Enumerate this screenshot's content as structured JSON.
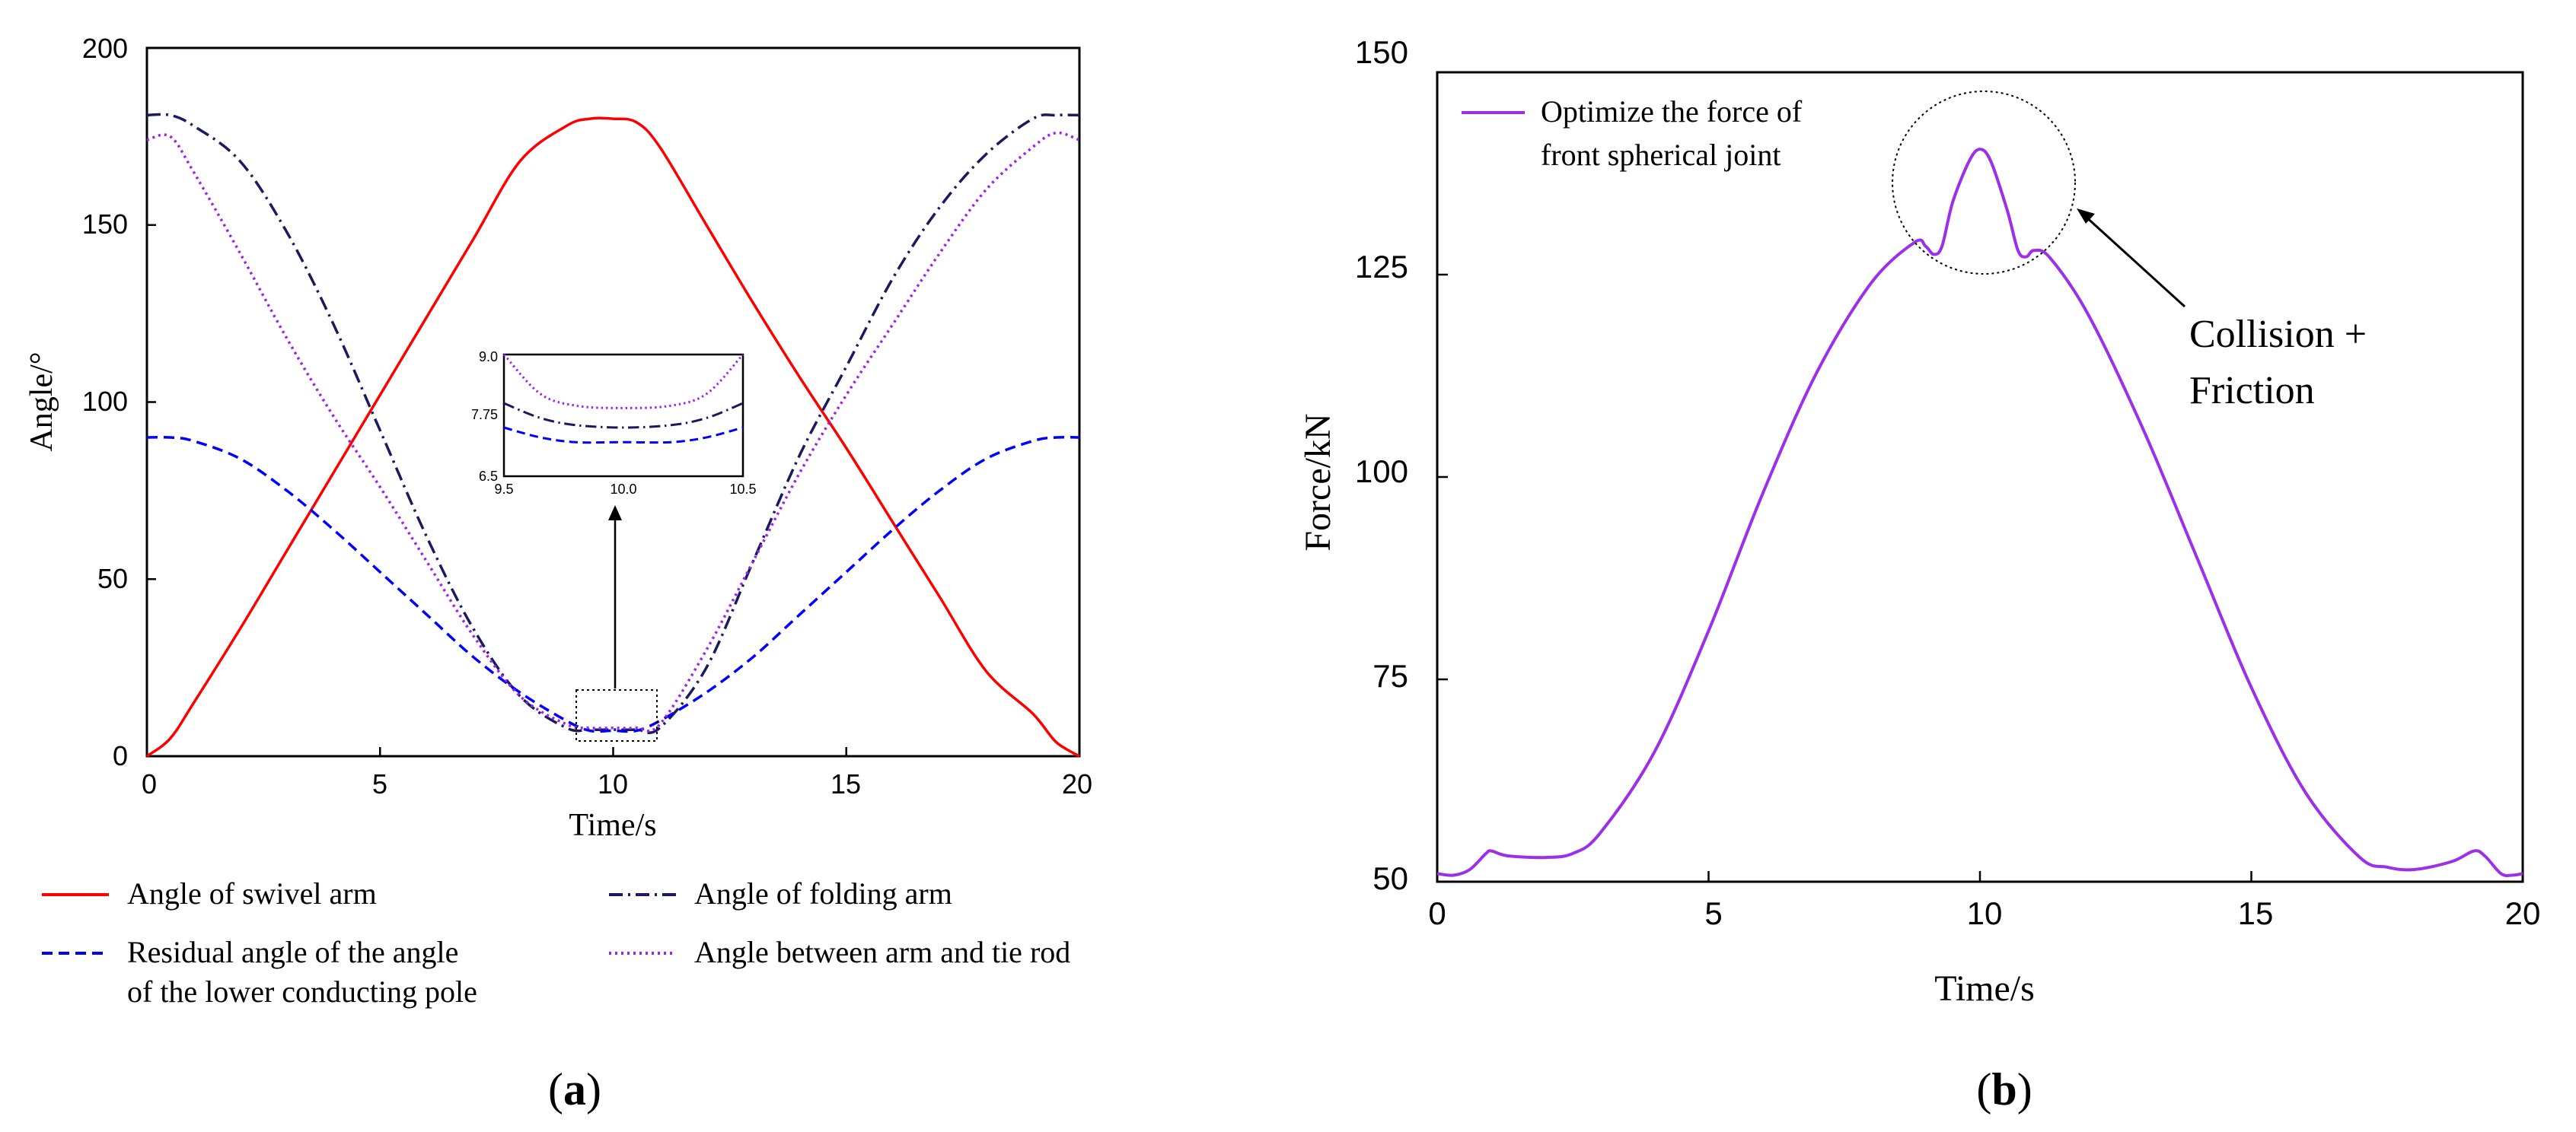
{
  "chart_data": [
    {
      "panel": "a",
      "panel_label": "a",
      "type": "line",
      "xlabel": "Time/s",
      "ylabel": "Angle/°",
      "xlim": [
        0,
        20
      ],
      "ylim": [
        0,
        200
      ],
      "xticks": [
        "0",
        "5",
        "10",
        "15",
        "20"
      ],
      "yticks": [
        "0",
        "50",
        "100",
        "150",
        "200"
      ],
      "series": [
        {
          "name": "Angle of swivel arm",
          "color": "#ff0000",
          "dash": "solid",
          "x": [
            0,
            0.5,
            1.0,
            2,
            3,
            4,
            5,
            6,
            7,
            8,
            9,
            9.5,
            10,
            10.5,
            11,
            12,
            13,
            14,
            15,
            16,
            17,
            18,
            19,
            19.5,
            20
          ],
          "y": [
            0,
            5,
            15,
            36,
            58,
            80,
            102,
            124,
            146,
            168,
            178,
            180,
            180,
            179,
            172,
            150,
            128,
            107,
            87,
            66,
            45,
            24,
            12,
            4,
            0
          ]
        },
        {
          "name": "Angle of folding arm",
          "color": "#1a1a5e",
          "dash": "dashdot",
          "x": [
            0,
            0.5,
            1,
            2,
            3,
            4,
            5,
            6,
            7,
            8,
            9,
            9.5,
            10,
            10.5,
            11,
            12,
            13,
            14,
            15,
            16,
            17,
            18,
            19,
            19.5,
            20
          ],
          "y": [
            181,
            181,
            178,
            168,
            148,
            122,
            92,
            62,
            36,
            17,
            8,
            7.5,
            7.5,
            7.5,
            8,
            25,
            55,
            85,
            110,
            135,
            155,
            170,
            180,
            181,
            181
          ]
        },
        {
          "name": "Residual angle of the angle\nof the lower conducting pole",
          "color": "#0000ff",
          "dash": "dashed",
          "x": [
            0,
            0.5,
            1,
            2,
            3,
            4,
            5,
            6,
            7,
            8,
            9,
            9.5,
            10,
            10.5,
            11,
            12,
            13,
            14,
            15,
            16,
            17,
            18,
            19,
            19.5,
            20
          ],
          "y": [
            90,
            90,
            89,
            84,
            75,
            64,
            52,
            40,
            28,
            18,
            10,
            7.2,
            7.2,
            7.2,
            10,
            18,
            28,
            40,
            52,
            64,
            75,
            84,
            89,
            90,
            90
          ]
        },
        {
          "name": "Angle between arm and tie rod",
          "color": "#a020f0",
          "dash": "dotted",
          "x": [
            0,
            0.5,
            1,
            2,
            3,
            4,
            5,
            6,
            7,
            8,
            9,
            9.5,
            10,
            10.5,
            11,
            12,
            13,
            14,
            15,
            16,
            17,
            18,
            19,
            19.5,
            20
          ],
          "y": [
            174,
            175,
            165,
            142,
            118,
            96,
            76,
            55,
            34,
            17,
            9,
            8,
            8,
            8,
            9,
            30,
            55,
            80,
            102,
            122,
            142,
            160,
            172,
            176,
            174
          ]
        }
      ],
      "inset": {
        "xlim": [
          9.5,
          10.5
        ],
        "ylim": [
          6.5,
          9.0
        ],
        "xticks": [
          "9.5",
          "10.0",
          "10.5"
        ],
        "yticks": [
          "6.5",
          "7.75",
          "9.0"
        ],
        "series": [
          {
            "color": "#a020f0",
            "dash": "dotted",
            "x": [
              9.5,
              9.65,
              9.8,
              10.0,
              10.2,
              10.35,
              10.5
            ],
            "y": [
              9.0,
              8.2,
              7.95,
              7.9,
              7.95,
              8.2,
              9.0
            ]
          },
          {
            "color": "#1a1a5e",
            "dash": "dashdot",
            "x": [
              9.5,
              9.65,
              9.8,
              10.0,
              10.2,
              10.35,
              10.5
            ],
            "y": [
              8.0,
              7.7,
              7.55,
              7.5,
              7.55,
              7.7,
              8.0
            ]
          },
          {
            "color": "#0000ff",
            "dash": "dashed",
            "x": [
              9.5,
              9.65,
              9.8,
              10.0,
              10.2,
              10.35,
              10.5
            ],
            "y": [
              7.5,
              7.3,
              7.2,
              7.2,
              7.2,
              7.3,
              7.5
            ]
          }
        ]
      }
    },
    {
      "panel": "b",
      "panel_label": "b",
      "type": "line",
      "xlabel": "Time/s",
      "ylabel": "Force/kN",
      "xlim": [
        0,
        20
      ],
      "ylim": [
        50,
        150
      ],
      "xticks": [
        "0",
        "5",
        "10",
        "15",
        "20"
      ],
      "yticks": [
        "50",
        "75",
        "100",
        "125",
        "150"
      ],
      "series": [
        {
          "name": "Optimize the force of\nfront spherical joint",
          "color": "#9b30e8",
          "dash": "solid",
          "x": [
            0,
            0.3,
            0.6,
            0.9,
            1.0,
            1.3,
            2.0,
            2.5,
            3.0,
            4.0,
            5.0,
            6.0,
            7.0,
            8.0,
            8.8,
            9.0,
            9.15,
            9.3,
            9.5,
            9.8,
            10.0,
            10.2,
            10.5,
            10.7,
            10.85,
            11.0,
            11.3,
            12.0,
            13.0,
            14.0,
            15.0,
            16.0,
            17.0,
            17.5,
            18.0,
            18.7,
            19.1,
            19.3,
            19.6,
            19.8,
            20.0
          ],
          "y": [
            51,
            50.8,
            51.5,
            53.5,
            53.8,
            53.2,
            53.0,
            53.5,
            56,
            66,
            81,
            98,
            113,
            124,
            129,
            128.5,
            127.5,
            128.5,
            134,
            139,
            140.5,
            139,
            133,
            128,
            127.2,
            128,
            127,
            120,
            106,
            90,
            74,
            61,
            53,
            51.8,
            51.5,
            52.5,
            53.8,
            53.2,
            51,
            50.8,
            51
          ]
        }
      ],
      "annotations": [
        "Collision +",
        "Friction"
      ]
    }
  ]
}
